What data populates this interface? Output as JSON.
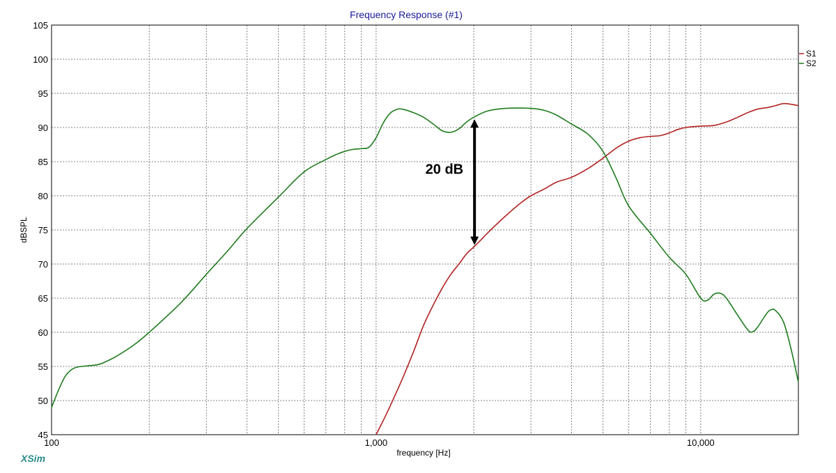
{
  "chart_data": {
    "type": "line",
    "title": "Frequency Response (#1)",
    "xlabel": "frequency [Hz]",
    "ylabel": "dBSPL",
    "x_scale": "log",
    "xlim": [
      100,
      20000
    ],
    "ylim": [
      45,
      105
    ],
    "x_ticks": [
      {
        "value": 100,
        "label": "100"
      },
      {
        "value": 1000,
        "label": "1,000"
      },
      {
        "value": 10000,
        "label": "10,000"
      }
    ],
    "y_ticks": [
      {
        "value": 105,
        "label": "105"
      },
      {
        "value": 100,
        "label": "100"
      },
      {
        "value": 95,
        "label": "95"
      },
      {
        "value": 90,
        "label": "90"
      },
      {
        "value": 85,
        "label": "85"
      },
      {
        "value": 80,
        "label": "80"
      },
      {
        "value": 75,
        "label": "75"
      },
      {
        "value": 70,
        "label": "70"
      },
      {
        "value": 65,
        "label": "65"
      },
      {
        "value": 60,
        "label": "60"
      },
      {
        "value": 55,
        "label": "55"
      },
      {
        "value": 50,
        "label": "50"
      },
      {
        "value": 45,
        "label": "45"
      }
    ],
    "grid": true,
    "legend_position": "right",
    "series": [
      {
        "name": "S1",
        "color": "#b22222",
        "points": [
          [
            1000,
            45
          ],
          [
            1050,
            47
          ],
          [
            1100,
            49
          ],
          [
            1200,
            53
          ],
          [
            1300,
            57
          ],
          [
            1400,
            61
          ],
          [
            1500,
            64
          ],
          [
            1600,
            66.5
          ],
          [
            1700,
            68.5
          ],
          [
            1800,
            70
          ],
          [
            1900,
            71.5
          ],
          [
            2000,
            72.5
          ],
          [
            2100,
            73.5
          ],
          [
            2200,
            74.5
          ],
          [
            2500,
            77
          ],
          [
            2800,
            79
          ],
          [
            3000,
            80
          ],
          [
            3300,
            81
          ],
          [
            3600,
            82
          ],
          [
            4000,
            82.7
          ],
          [
            4500,
            84
          ],
          [
            5000,
            85.5
          ],
          [
            5500,
            87
          ],
          [
            6000,
            88
          ],
          [
            6500,
            88.5
          ],
          [
            7000,
            88.7
          ],
          [
            7500,
            88.8
          ],
          [
            8000,
            89.2
          ],
          [
            8500,
            89.7
          ],
          [
            9000,
            90
          ],
          [
            10000,
            90.2
          ],
          [
            11000,
            90.3
          ],
          [
            12000,
            90.8
          ],
          [
            13000,
            91.5
          ],
          [
            14000,
            92.2
          ],
          [
            15000,
            92.7
          ],
          [
            16000,
            92.9
          ],
          [
            17000,
            93.2
          ],
          [
            18000,
            93.5
          ],
          [
            19000,
            93.4
          ],
          [
            20000,
            93.2
          ]
        ]
      },
      {
        "name": "S2",
        "color": "#1e7b1e",
        "points": [
          [
            100,
            49
          ],
          [
            105,
            51.5
          ],
          [
            110,
            53.5
          ],
          [
            115,
            54.5
          ],
          [
            120,
            54.9
          ],
          [
            130,
            55.1
          ],
          [
            140,
            55.3
          ],
          [
            150,
            55.9
          ],
          [
            160,
            56.6
          ],
          [
            180,
            58.2
          ],
          [
            200,
            60
          ],
          [
            250,
            64.3
          ],
          [
            300,
            68.5
          ],
          [
            350,
            72
          ],
          [
            400,
            75.2
          ],
          [
            500,
            79.8
          ],
          [
            600,
            83.5
          ],
          [
            700,
            85.3
          ],
          [
            750,
            86
          ],
          [
            800,
            86.5
          ],
          [
            850,
            86.8
          ],
          [
            900,
            86.9
          ],
          [
            950,
            87.1
          ],
          [
            1000,
            88.5
          ],
          [
            1050,
            90.6
          ],
          [
            1100,
            92
          ],
          [
            1150,
            92.6
          ],
          [
            1200,
            92.7
          ],
          [
            1300,
            92.2
          ],
          [
            1400,
            91.5
          ],
          [
            1500,
            90.5
          ],
          [
            1600,
            89.5
          ],
          [
            1700,
            89.3
          ],
          [
            1800,
            89.8
          ],
          [
            1900,
            90.8
          ],
          [
            2000,
            91.5
          ],
          [
            2200,
            92.4
          ],
          [
            2500,
            92.8
          ],
          [
            3000,
            92.8
          ],
          [
            3300,
            92.5
          ],
          [
            3600,
            91.8
          ],
          [
            4000,
            90.5
          ],
          [
            4500,
            89
          ],
          [
            5000,
            86.5
          ],
          [
            5500,
            82.5
          ],
          [
            6000,
            78.5
          ],
          [
            7000,
            74.5
          ],
          [
            8000,
            71
          ],
          [
            9000,
            68.5
          ],
          [
            10000,
            65
          ],
          [
            10500,
            64.7
          ],
          [
            11000,
            65.6
          ],
          [
            11500,
            65.7
          ],
          [
            12000,
            65
          ],
          [
            13000,
            62.5
          ],
          [
            14000,
            60.3
          ],
          [
            14500,
            60.1
          ],
          [
            15000,
            60.8
          ],
          [
            16000,
            62.8
          ],
          [
            16500,
            63.3
          ],
          [
            17000,
            63.2
          ],
          [
            18000,
            61.5
          ],
          [
            19000,
            57.5
          ],
          [
            20000,
            52.7
          ]
        ]
      }
    ],
    "annotation": {
      "text": "20 dB",
      "x": 2000,
      "y_from": 73,
      "y_to": 91
    }
  },
  "brand": {
    "label": "XSim",
    "color": "#2a8a8a"
  },
  "colors": {
    "title": "#1a1a99",
    "grid": "#808080",
    "frame": "#000000"
  }
}
